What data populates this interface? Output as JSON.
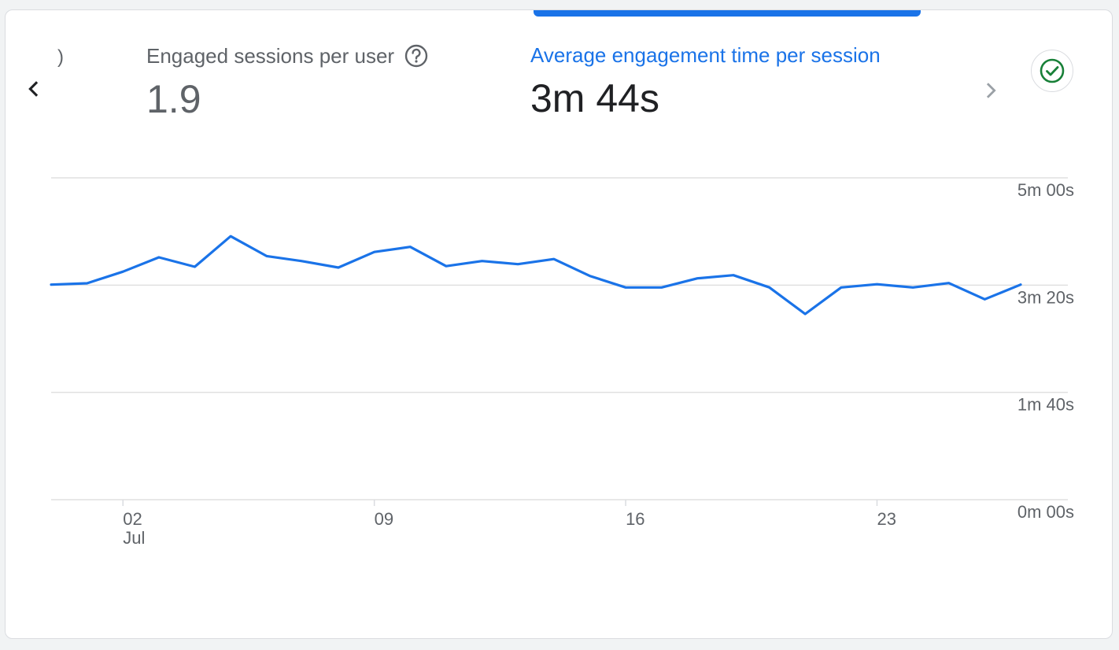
{
  "metrics": {
    "partial_prev": ")",
    "engaged_sessions": {
      "label": "Engaged sessions per user",
      "value": "1.9"
    },
    "avg_engagement": {
      "label": "Average engagement time per session",
      "value": "3m 44s"
    }
  },
  "icons": {
    "prev": "chevron-left-icon",
    "next": "chevron-right-icon",
    "help": "help-circle-icon",
    "status": "check-circle-icon"
  },
  "colors": {
    "accent": "#1a73e8",
    "success": "#188038",
    "grid": "#e0e0e0",
    "text": "#5f6368"
  },
  "chart_data": {
    "type": "line",
    "x": [
      "Jun 30",
      "Jul 01",
      "Jul 02",
      "Jul 03",
      "Jul 04",
      "Jul 05",
      "Jul 06",
      "Jul 07",
      "Jul 08",
      "Jul 09",
      "Jul 10",
      "Jul 11",
      "Jul 12",
      "Jul 13",
      "Jul 14",
      "Jul 15",
      "Jul 16",
      "Jul 17",
      "Jul 18",
      "Jul 19",
      "Jul 20",
      "Jul 21",
      "Jul 22",
      "Jul 23",
      "Jul 24",
      "Jul 25",
      "Jul 26",
      "Jul 27"
    ],
    "series": [
      {
        "values": [
          200.5,
          201.7,
          212.6,
          225.9,
          217.1,
          245.6,
          227.1,
          222.3,
          216.4,
          230.9,
          235.7,
          217.7,
          222.5,
          219.5,
          224.3,
          208.6,
          197.8,
          197.8,
          206.3,
          209.3,
          197.9,
          173.1,
          197.8,
          200.8,
          197.8,
          201.9,
          186.8,
          200.5
        ]
      }
    ],
    "y_ticks": [
      "0m 00s",
      "1m 40s",
      "3m 20s",
      "5m 00s"
    ],
    "ylim": [
      0,
      300
    ],
    "x_ticks": [
      {
        "label": "02",
        "sublabel": "Jul"
      },
      {
        "label": "09",
        "sublabel": ""
      },
      {
        "label": "16",
        "sublabel": ""
      },
      {
        "label": "23",
        "sublabel": ""
      }
    ],
    "grid": true,
    "xlabel": "",
    "ylabel": ""
  }
}
